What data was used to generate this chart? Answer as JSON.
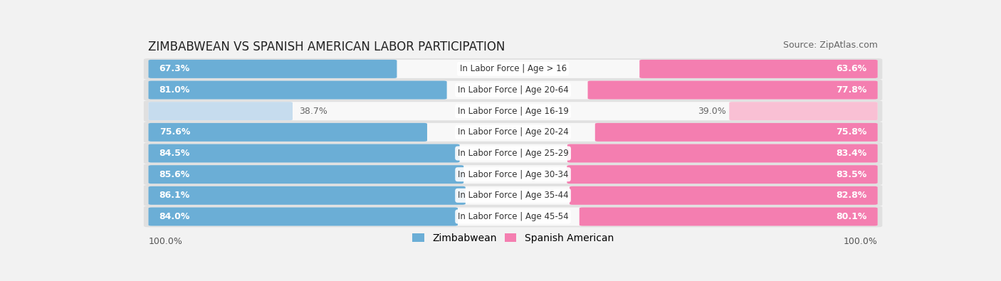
{
  "title": "ZIMBABWEAN VS SPANISH AMERICAN LABOR PARTICIPATION",
  "source": "Source: ZipAtlas.com",
  "categories": [
    "In Labor Force | Age > 16",
    "In Labor Force | Age 20-64",
    "In Labor Force | Age 16-19",
    "In Labor Force | Age 20-24",
    "In Labor Force | Age 25-29",
    "In Labor Force | Age 30-34",
    "In Labor Force | Age 35-44",
    "In Labor Force | Age 45-54"
  ],
  "zimbabwean": [
    67.3,
    81.0,
    38.7,
    75.6,
    84.5,
    85.6,
    86.1,
    84.0
  ],
  "spanish_american": [
    63.6,
    77.8,
    39.0,
    75.8,
    83.4,
    83.5,
    82.8,
    80.1
  ],
  "zim_color_strong": "#6baed6",
  "zim_color_light": "#c6dcee",
  "spa_color_strong": "#f47eb0",
  "spa_color_light": "#f9c0d4",
  "label_color_strong": "#ffffff",
  "label_color_light": "#666666",
  "background_color": "#f2f2f2",
  "row_bg_color": "#e0e0e0",
  "bar_bg_color": "#f8f8f8",
  "max_value": 100.0,
  "title_fontsize": 12,
  "source_fontsize": 9,
  "label_fontsize": 9,
  "category_fontsize": 8.5,
  "legend_fontsize": 10,
  "footer_fontsize": 9
}
